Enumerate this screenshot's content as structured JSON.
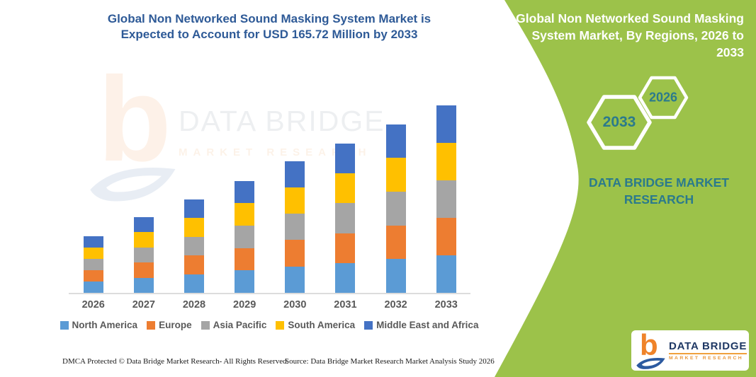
{
  "title": {
    "line1": "Global Non Networked Sound Masking System Market is",
    "line2": "Expected to Account for USD 165.72 Million by 2033"
  },
  "watermark": {
    "brand": "DATA BRIDGE",
    "sub": "MARKET RESEARCH",
    "glyph": "b"
  },
  "footer": {
    "left": "DMCA Protected © Data Bridge Market Research-  All Rights Reserved.",
    "right": "Source: Data Bridge Market Research  Market Analysis Study 2026"
  },
  "panel": {
    "bg": "#9CC24A",
    "heading": "Global Non Networked Sound Masking System Market, By Regions, 2026 to 2033",
    "hex_large_label": "2033",
    "hex_small_label": "2026",
    "brand_line1": "DATA BRIDGE MARKET",
    "brand_line2": "RESEARCH",
    "accent_text_color": "#2B7A8C",
    "logo": {
      "brand": "DATA BRIDGE",
      "sub": "MARKET RESEARCH",
      "glyph": "b"
    }
  },
  "chart_data": {
    "type": "bar",
    "stacked": true,
    "title": "Global Non Networked Sound Masking System Market is Expected to Account for USD 165.72 Million by 2033",
    "categories": [
      "2026",
      "2027",
      "2028",
      "2029",
      "2030",
      "2031",
      "2032",
      "2033"
    ],
    "series": [
      {
        "name": "North America",
        "color": "#5B9BD5",
        "values": [
          10.0,
          13.4,
          16.5,
          19.8,
          23.3,
          26.4,
          29.8,
          33.1
        ]
      },
      {
        "name": "Europe",
        "color": "#ED7D31",
        "values": [
          10.0,
          13.4,
          16.5,
          19.8,
          23.3,
          26.4,
          29.8,
          33.1
        ]
      },
      {
        "name": "Asia Pacific",
        "color": "#A5A5A5",
        "values": [
          10.0,
          13.4,
          16.5,
          19.8,
          23.3,
          26.4,
          29.8,
          33.1
        ]
      },
      {
        "name": "South America",
        "color": "#FFC000",
        "values": [
          10.0,
          13.4,
          16.5,
          19.8,
          23.3,
          26.4,
          29.8,
          33.1
        ]
      },
      {
        "name": "Middle East and Africa",
        "color": "#4472C4",
        "values": [
          10.0,
          13.4,
          16.5,
          19.8,
          23.3,
          26.4,
          29.8,
          33.1
        ]
      }
    ],
    "totals": [
      50.0,
      67.0,
      82.5,
      99.0,
      116.5,
      132.0,
      149.0,
      165.72
    ],
    "ylim": [
      0,
      170
    ],
    "xlabel": "",
    "ylabel": "",
    "grid": false,
    "legend_position": "bottom",
    "axis_line_color": "#DCDCDC",
    "label_color": "#595959"
  }
}
